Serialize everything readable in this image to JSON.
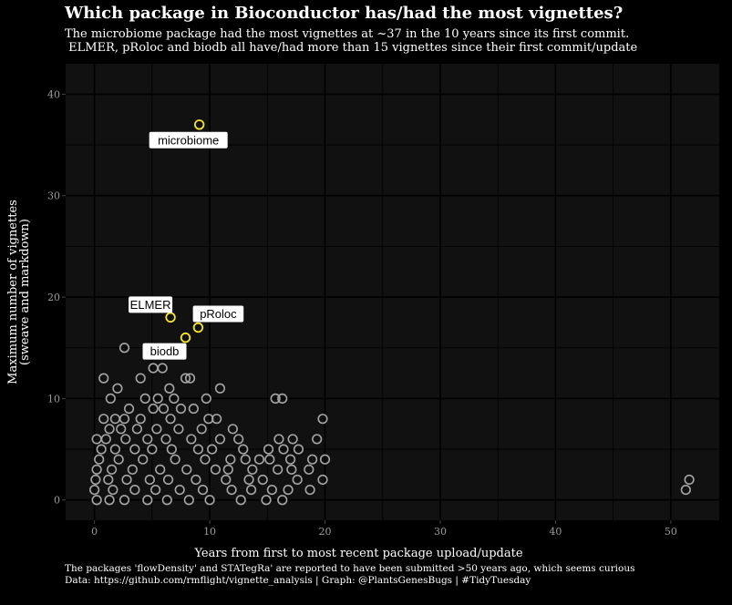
{
  "title": "Which package in Bioconductor has/had the most vignettes?",
  "subtitle": [
    "The microbiome package had the most vignettes at ~37 in the 10 years since its first commit.",
    " ELMER, pRoloc and biodb all have/had more than 15 vignettes since their first commit/update"
  ],
  "caption": [
    "The packages 'flowDensity' and STATegRa' are reported to have been submitted >50 years ago, which seems curious",
    "Data: https://github.com/rmflight/vignette_analysis | Graph: @PlantsGenesBugs | #TidyTuesday"
  ],
  "colors": {
    "background": "#000000",
    "panel": "#111111",
    "grid": "#000000",
    "point_default": "#a6a6a6",
    "point_highlight": "#f5e52f",
    "text": "#ffffff",
    "tick_text": "#9a9a9a"
  },
  "chart_data": {
    "type": "scatter",
    "xlabel": "Years from first to most recent package upload/update",
    "ylabel": [
      "Maximum number of vignettes",
      "(sweave and markdown)"
    ],
    "xlim": [
      -2.5,
      54.2
    ],
    "ylim": [
      -2,
      43
    ],
    "xticks": [
      0,
      10,
      20,
      30,
      40,
      50
    ],
    "yticks": [
      0,
      10,
      20,
      30,
      40
    ],
    "grid": true,
    "legend": "none",
    "highlighted": [
      {
        "name": "microbiome",
        "x": 9.1,
        "y": 37
      },
      {
        "name": "ELMER",
        "x": 6.6,
        "y": 18
      },
      {
        "name": "pRoloc",
        "x": 9.0,
        "y": 17
      },
      {
        "name": "biodb",
        "x": 7.9,
        "y": 16
      }
    ],
    "points": [
      {
        "x": 2.6,
        "y": 15
      },
      {
        "x": 0.8,
        "y": 12
      },
      {
        "x": 4.0,
        "y": 12
      },
      {
        "x": 5.1,
        "y": 13
      },
      {
        "x": 5.9,
        "y": 13
      },
      {
        "x": 7.9,
        "y": 12
      },
      {
        "x": 8.3,
        "y": 12
      },
      {
        "x": 10.9,
        "y": 11
      },
      {
        "x": 2.0,
        "y": 11
      },
      {
        "x": 6.5,
        "y": 11
      },
      {
        "x": 1.4,
        "y": 10
      },
      {
        "x": 4.4,
        "y": 10
      },
      {
        "x": 5.5,
        "y": 10
      },
      {
        "x": 6.9,
        "y": 10
      },
      {
        "x": 9.7,
        "y": 10
      },
      {
        "x": 15.7,
        "y": 10
      },
      {
        "x": 16.3,
        "y": 10
      },
      {
        "x": 3.0,
        "y": 9
      },
      {
        "x": 5.1,
        "y": 9
      },
      {
        "x": 6.0,
        "y": 9
      },
      {
        "x": 7.5,
        "y": 9
      },
      {
        "x": 8.6,
        "y": 9
      },
      {
        "x": 0.8,
        "y": 8
      },
      {
        "x": 1.8,
        "y": 8
      },
      {
        "x": 2.6,
        "y": 8
      },
      {
        "x": 4.0,
        "y": 8
      },
      {
        "x": 6.6,
        "y": 8
      },
      {
        "x": 9.9,
        "y": 8
      },
      {
        "x": 10.6,
        "y": 8
      },
      {
        "x": 19.8,
        "y": 8
      },
      {
        "x": 1.3,
        "y": 7
      },
      {
        "x": 2.3,
        "y": 7
      },
      {
        "x": 3.7,
        "y": 7
      },
      {
        "x": 5.4,
        "y": 7
      },
      {
        "x": 7.3,
        "y": 7
      },
      {
        "x": 9.3,
        "y": 7
      },
      {
        "x": 12.0,
        "y": 7
      },
      {
        "x": 0.2,
        "y": 6
      },
      {
        "x": 1.0,
        "y": 6
      },
      {
        "x": 2.7,
        "y": 6
      },
      {
        "x": 4.6,
        "y": 6
      },
      {
        "x": 6.2,
        "y": 6
      },
      {
        "x": 8.4,
        "y": 6
      },
      {
        "x": 10.9,
        "y": 6
      },
      {
        "x": 12.5,
        "y": 6
      },
      {
        "x": 16.0,
        "y": 6
      },
      {
        "x": 17.2,
        "y": 6
      },
      {
        "x": 19.3,
        "y": 6
      },
      {
        "x": 0.6,
        "y": 5
      },
      {
        "x": 1.8,
        "y": 5
      },
      {
        "x": 3.5,
        "y": 5
      },
      {
        "x": 5.0,
        "y": 5
      },
      {
        "x": 6.7,
        "y": 5
      },
      {
        "x": 9.0,
        "y": 5
      },
      {
        "x": 10.2,
        "y": 5
      },
      {
        "x": 12.9,
        "y": 5
      },
      {
        "x": 15.1,
        "y": 5
      },
      {
        "x": 16.4,
        "y": 5
      },
      {
        "x": 17.7,
        "y": 5
      },
      {
        "x": 0.4,
        "y": 4
      },
      {
        "x": 2.1,
        "y": 4
      },
      {
        "x": 4.2,
        "y": 4
      },
      {
        "x": 7.0,
        "y": 4
      },
      {
        "x": 9.6,
        "y": 4
      },
      {
        "x": 11.8,
        "y": 4
      },
      {
        "x": 13.1,
        "y": 4
      },
      {
        "x": 14.3,
        "y": 4
      },
      {
        "x": 15.2,
        "y": 4
      },
      {
        "x": 17.0,
        "y": 4
      },
      {
        "x": 18.9,
        "y": 4
      },
      {
        "x": 20.0,
        "y": 4
      },
      {
        "x": 0.2,
        "y": 3
      },
      {
        "x": 1.5,
        "y": 3
      },
      {
        "x": 3.3,
        "y": 3
      },
      {
        "x": 5.7,
        "y": 3
      },
      {
        "x": 8.0,
        "y": 3
      },
      {
        "x": 10.5,
        "y": 3
      },
      {
        "x": 11.6,
        "y": 3
      },
      {
        "x": 13.7,
        "y": 3
      },
      {
        "x": 15.9,
        "y": 3
      },
      {
        "x": 17.1,
        "y": 3
      },
      {
        "x": 18.6,
        "y": 3
      },
      {
        "x": 0.1,
        "y": 2
      },
      {
        "x": 1.2,
        "y": 2
      },
      {
        "x": 2.8,
        "y": 2
      },
      {
        "x": 4.8,
        "y": 2
      },
      {
        "x": 6.4,
        "y": 2
      },
      {
        "x": 8.8,
        "y": 2
      },
      {
        "x": 11.4,
        "y": 2
      },
      {
        "x": 13.4,
        "y": 2
      },
      {
        "x": 14.6,
        "y": 2
      },
      {
        "x": 17.6,
        "y": 2
      },
      {
        "x": 19.8,
        "y": 2
      },
      {
        "x": 0.0,
        "y": 1
      },
      {
        "x": 1.6,
        "y": 1
      },
      {
        "x": 3.5,
        "y": 1
      },
      {
        "x": 5.3,
        "y": 1
      },
      {
        "x": 7.4,
        "y": 1
      },
      {
        "x": 9.4,
        "y": 1
      },
      {
        "x": 11.9,
        "y": 1
      },
      {
        "x": 13.6,
        "y": 1
      },
      {
        "x": 15.4,
        "y": 1
      },
      {
        "x": 16.8,
        "y": 1
      },
      {
        "x": 18.7,
        "y": 1
      },
      {
        "x": 0.2,
        "y": 0
      },
      {
        "x": 1.3,
        "y": 0
      },
      {
        "x": 2.6,
        "y": 0
      },
      {
        "x": 4.6,
        "y": 0
      },
      {
        "x": 6.3,
        "y": 0
      },
      {
        "x": 8.2,
        "y": 0
      },
      {
        "x": 10.0,
        "y": 0
      },
      {
        "x": 12.7,
        "y": 0
      },
      {
        "x": 14.9,
        "y": 0
      },
      {
        "x": 16.3,
        "y": 0
      },
      {
        "x": 51.3,
        "y": 1
      },
      {
        "x": 51.6,
        "y": 2
      }
    ]
  }
}
